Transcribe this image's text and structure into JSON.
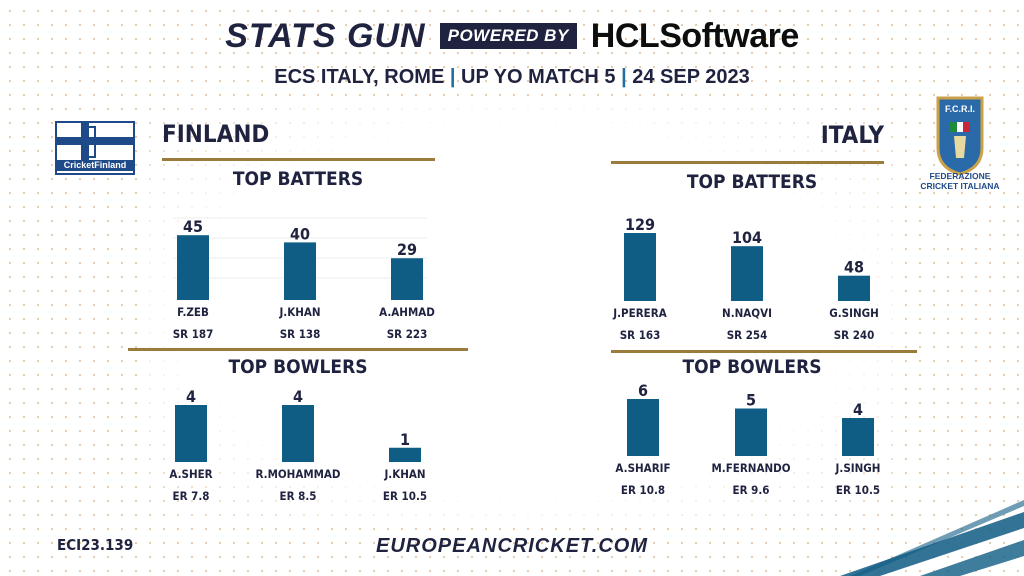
{
  "header": {
    "brand": "STATS GUN",
    "powered_by": "POWERED BY",
    "sponsor_prefix": "HCL",
    "sponsor_suffix": "Software",
    "subtitle_part1": "ECS ITALY, ROME",
    "subtitle_part2": "UP YO MATCH 5",
    "subtitle_part3": "24 SEP 2023",
    "separator": "|"
  },
  "logos": {
    "finland_text": "CricketFinland",
    "italy_abbrev": "F.C.R.I.",
    "italy_line1": "FEDERAZIONE",
    "italy_line2": "CRICKET ITALIANA"
  },
  "footer": {
    "code": "ECI23.139",
    "website": "EUROPEANCRICKET.COM"
  },
  "colors": {
    "bar": "#0f5c84",
    "navy": "#1f2340",
    "gold": "#9a7b3c"
  },
  "chart_data": [
    {
      "type": "bar",
      "team": "FINLAND",
      "title": "TOP BATTERS",
      "categories": [
        "F.ZEB",
        "J.KHAN",
        "A.AHMAD"
      ],
      "values": [
        45,
        40,
        29
      ],
      "rates": [
        "SR 187",
        "SR 138",
        "SR 223"
      ],
      "ylim": [
        0,
        50
      ]
    },
    {
      "type": "bar",
      "team": "FINLAND",
      "title": "TOP BOWLERS",
      "categories": [
        "A.SHER",
        "R.MOHAMMAD",
        "J.KHAN"
      ],
      "values": [
        4,
        4,
        1
      ],
      "rates": [
        "ER 7.8",
        "ER 8.5",
        "ER 10.5"
      ],
      "ylim": [
        0,
        4
      ]
    },
    {
      "type": "bar",
      "team": "ITALY",
      "title": "TOP BATTERS",
      "categories": [
        "J.PERERA",
        "N.NAQVI",
        "G.SINGH"
      ],
      "values": [
        129,
        104,
        48
      ],
      "rates": [
        "SR 163",
        "SR 254",
        "SR 240"
      ],
      "ylim": [
        0,
        129
      ]
    },
    {
      "type": "bar",
      "team": "ITALY",
      "title": "TOP BOWLERS",
      "categories": [
        "A.SHARIF",
        "M.FERNANDO",
        "J.SINGH"
      ],
      "values": [
        6,
        5,
        4
      ],
      "rates": [
        "ER 10.8",
        "ER 9.6",
        "ER 10.5"
      ],
      "ylim": [
        0,
        6
      ]
    }
  ]
}
